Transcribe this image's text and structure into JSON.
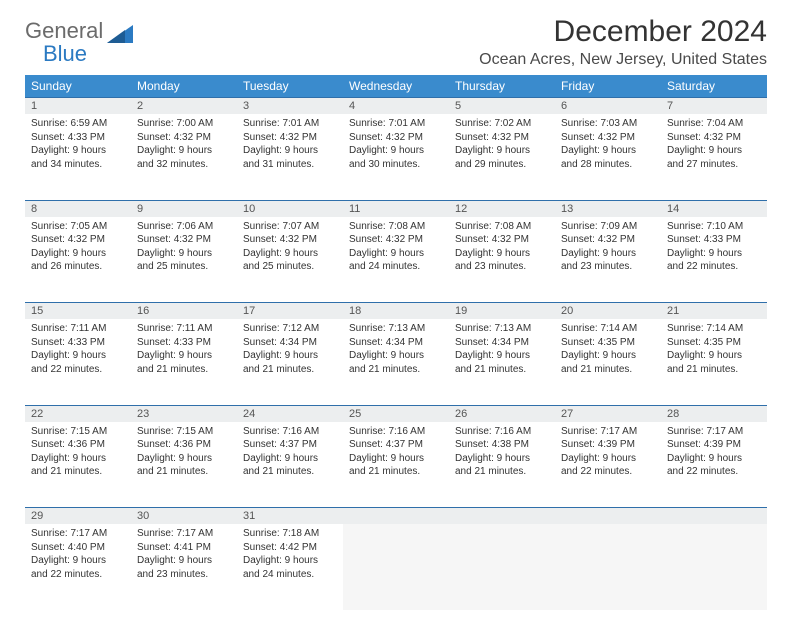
{
  "logo": {
    "line1": "General",
    "line2": "Blue"
  },
  "title": "December 2024",
  "location": "Ocean Acres, New Jersey, United States",
  "colors": {
    "header_bg": "#3a8bcd",
    "header_text": "#ffffff",
    "daynum_bg": "#eceeef",
    "row_border": "#2f6faa",
    "logo_gray": "#6b6b6b",
    "logo_blue": "#2b7ac2"
  },
  "day_headers": [
    "Sunday",
    "Monday",
    "Tuesday",
    "Wednesday",
    "Thursday",
    "Friday",
    "Saturday"
  ],
  "weeks": [
    {
      "nums": [
        "1",
        "2",
        "3",
        "4",
        "5",
        "6",
        "7"
      ],
      "cells": [
        {
          "sunrise": "Sunrise: 6:59 AM",
          "sunset": "Sunset: 4:33 PM",
          "day1": "Daylight: 9 hours",
          "day2": "and 34 minutes."
        },
        {
          "sunrise": "Sunrise: 7:00 AM",
          "sunset": "Sunset: 4:32 PM",
          "day1": "Daylight: 9 hours",
          "day2": "and 32 minutes."
        },
        {
          "sunrise": "Sunrise: 7:01 AM",
          "sunset": "Sunset: 4:32 PM",
          "day1": "Daylight: 9 hours",
          "day2": "and 31 minutes."
        },
        {
          "sunrise": "Sunrise: 7:01 AM",
          "sunset": "Sunset: 4:32 PM",
          "day1": "Daylight: 9 hours",
          "day2": "and 30 minutes."
        },
        {
          "sunrise": "Sunrise: 7:02 AM",
          "sunset": "Sunset: 4:32 PM",
          "day1": "Daylight: 9 hours",
          "day2": "and 29 minutes."
        },
        {
          "sunrise": "Sunrise: 7:03 AM",
          "sunset": "Sunset: 4:32 PM",
          "day1": "Daylight: 9 hours",
          "day2": "and 28 minutes."
        },
        {
          "sunrise": "Sunrise: 7:04 AM",
          "sunset": "Sunset: 4:32 PM",
          "day1": "Daylight: 9 hours",
          "day2": "and 27 minutes."
        }
      ]
    },
    {
      "nums": [
        "8",
        "9",
        "10",
        "11",
        "12",
        "13",
        "14"
      ],
      "cells": [
        {
          "sunrise": "Sunrise: 7:05 AM",
          "sunset": "Sunset: 4:32 PM",
          "day1": "Daylight: 9 hours",
          "day2": "and 26 minutes."
        },
        {
          "sunrise": "Sunrise: 7:06 AM",
          "sunset": "Sunset: 4:32 PM",
          "day1": "Daylight: 9 hours",
          "day2": "and 25 minutes."
        },
        {
          "sunrise": "Sunrise: 7:07 AM",
          "sunset": "Sunset: 4:32 PM",
          "day1": "Daylight: 9 hours",
          "day2": "and 25 minutes."
        },
        {
          "sunrise": "Sunrise: 7:08 AM",
          "sunset": "Sunset: 4:32 PM",
          "day1": "Daylight: 9 hours",
          "day2": "and 24 minutes."
        },
        {
          "sunrise": "Sunrise: 7:08 AM",
          "sunset": "Sunset: 4:32 PM",
          "day1": "Daylight: 9 hours",
          "day2": "and 23 minutes."
        },
        {
          "sunrise": "Sunrise: 7:09 AM",
          "sunset": "Sunset: 4:32 PM",
          "day1": "Daylight: 9 hours",
          "day2": "and 23 minutes."
        },
        {
          "sunrise": "Sunrise: 7:10 AM",
          "sunset": "Sunset: 4:33 PM",
          "day1": "Daylight: 9 hours",
          "day2": "and 22 minutes."
        }
      ]
    },
    {
      "nums": [
        "15",
        "16",
        "17",
        "18",
        "19",
        "20",
        "21"
      ],
      "cells": [
        {
          "sunrise": "Sunrise: 7:11 AM",
          "sunset": "Sunset: 4:33 PM",
          "day1": "Daylight: 9 hours",
          "day2": "and 22 minutes."
        },
        {
          "sunrise": "Sunrise: 7:11 AM",
          "sunset": "Sunset: 4:33 PM",
          "day1": "Daylight: 9 hours",
          "day2": "and 21 minutes."
        },
        {
          "sunrise": "Sunrise: 7:12 AM",
          "sunset": "Sunset: 4:34 PM",
          "day1": "Daylight: 9 hours",
          "day2": "and 21 minutes."
        },
        {
          "sunrise": "Sunrise: 7:13 AM",
          "sunset": "Sunset: 4:34 PM",
          "day1": "Daylight: 9 hours",
          "day2": "and 21 minutes."
        },
        {
          "sunrise": "Sunrise: 7:13 AM",
          "sunset": "Sunset: 4:34 PM",
          "day1": "Daylight: 9 hours",
          "day2": "and 21 minutes."
        },
        {
          "sunrise": "Sunrise: 7:14 AM",
          "sunset": "Sunset: 4:35 PM",
          "day1": "Daylight: 9 hours",
          "day2": "and 21 minutes."
        },
        {
          "sunrise": "Sunrise: 7:14 AM",
          "sunset": "Sunset: 4:35 PM",
          "day1": "Daylight: 9 hours",
          "day2": "and 21 minutes."
        }
      ]
    },
    {
      "nums": [
        "22",
        "23",
        "24",
        "25",
        "26",
        "27",
        "28"
      ],
      "cells": [
        {
          "sunrise": "Sunrise: 7:15 AM",
          "sunset": "Sunset: 4:36 PM",
          "day1": "Daylight: 9 hours",
          "day2": "and 21 minutes."
        },
        {
          "sunrise": "Sunrise: 7:15 AM",
          "sunset": "Sunset: 4:36 PM",
          "day1": "Daylight: 9 hours",
          "day2": "and 21 minutes."
        },
        {
          "sunrise": "Sunrise: 7:16 AM",
          "sunset": "Sunset: 4:37 PM",
          "day1": "Daylight: 9 hours",
          "day2": "and 21 minutes."
        },
        {
          "sunrise": "Sunrise: 7:16 AM",
          "sunset": "Sunset: 4:37 PM",
          "day1": "Daylight: 9 hours",
          "day2": "and 21 minutes."
        },
        {
          "sunrise": "Sunrise: 7:16 AM",
          "sunset": "Sunset: 4:38 PM",
          "day1": "Daylight: 9 hours",
          "day2": "and 21 minutes."
        },
        {
          "sunrise": "Sunrise: 7:17 AM",
          "sunset": "Sunset: 4:39 PM",
          "day1": "Daylight: 9 hours",
          "day2": "and 22 minutes."
        },
        {
          "sunrise": "Sunrise: 7:17 AM",
          "sunset": "Sunset: 4:39 PM",
          "day1": "Daylight: 9 hours",
          "day2": "and 22 minutes."
        }
      ]
    },
    {
      "nums": [
        "29",
        "30",
        "31",
        "",
        "",
        "",
        ""
      ],
      "cells": [
        {
          "sunrise": "Sunrise: 7:17 AM",
          "sunset": "Sunset: 4:40 PM",
          "day1": "Daylight: 9 hours",
          "day2": "and 22 minutes."
        },
        {
          "sunrise": "Sunrise: 7:17 AM",
          "sunset": "Sunset: 4:41 PM",
          "day1": "Daylight: 9 hours",
          "day2": "and 23 minutes."
        },
        {
          "sunrise": "Sunrise: 7:18 AM",
          "sunset": "Sunset: 4:42 PM",
          "day1": "Daylight: 9 hours",
          "day2": "and 24 minutes."
        },
        null,
        null,
        null,
        null
      ]
    }
  ]
}
